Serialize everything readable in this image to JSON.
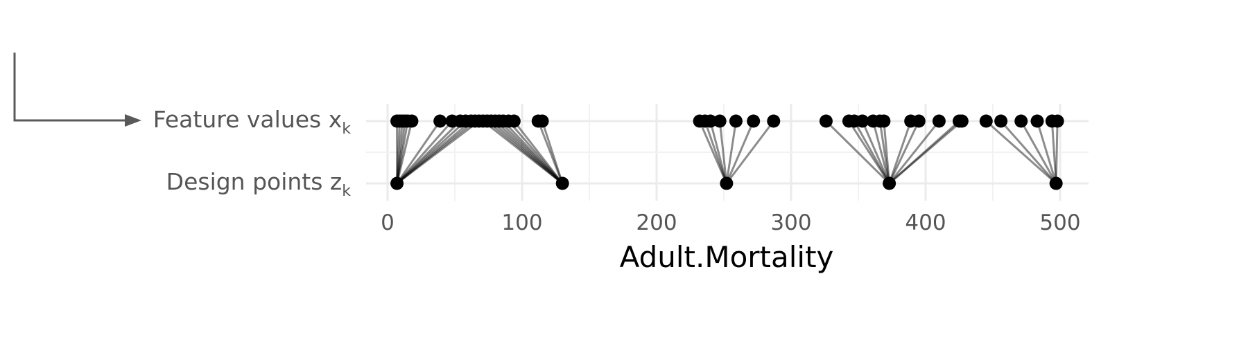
{
  "chart_data": {
    "type": "scatter",
    "xlabel": "Adult.Mortality",
    "xlim": [
      0,
      520
    ],
    "xticks": [
      0,
      100,
      200,
      300,
      400,
      500
    ],
    "rows": [
      {
        "label_main": "Feature values x",
        "label_sub": "k"
      },
      {
        "label_main": "Design points z",
        "label_sub": "k"
      }
    ],
    "design_points": [
      7,
      130,
      252,
      373,
      497
    ],
    "feature_values": [
      {
        "x": 7,
        "z": 7
      },
      {
        "x": 9,
        "z": 7
      },
      {
        "x": 11,
        "z": 7
      },
      {
        "x": 13,
        "z": 7
      },
      {
        "x": 15,
        "z": 7
      },
      {
        "x": 18,
        "z": 7
      },
      {
        "x": 39,
        "z": 7
      },
      {
        "x": 48,
        "z": 7
      },
      {
        "x": 54,
        "z": 7
      },
      {
        "x": 58,
        "z": 7
      },
      {
        "x": 62,
        "z": 7
      },
      {
        "x": 65,
        "z": 7
      },
      {
        "x": 68,
        "z": 7
      },
      {
        "x": 71,
        "z": 130
      },
      {
        "x": 74,
        "z": 130
      },
      {
        "x": 77,
        "z": 130
      },
      {
        "x": 80,
        "z": 130
      },
      {
        "x": 83,
        "z": 130
      },
      {
        "x": 86,
        "z": 130
      },
      {
        "x": 90,
        "z": 130
      },
      {
        "x": 94,
        "z": 130
      },
      {
        "x": 112,
        "z": 130
      },
      {
        "x": 115,
        "z": 130
      },
      {
        "x": 232,
        "z": 252
      },
      {
        "x": 236,
        "z": 252
      },
      {
        "x": 240,
        "z": 252
      },
      {
        "x": 247,
        "z": 252
      },
      {
        "x": 259,
        "z": 252
      },
      {
        "x": 272,
        "z": 252
      },
      {
        "x": 287,
        "z": 252
      },
      {
        "x": 326,
        "z": 373
      },
      {
        "x": 343,
        "z": 373
      },
      {
        "x": 347,
        "z": 373
      },
      {
        "x": 353,
        "z": 373
      },
      {
        "x": 361,
        "z": 373
      },
      {
        "x": 366,
        "z": 373
      },
      {
        "x": 369,
        "z": 373
      },
      {
        "x": 389,
        "z": 373
      },
      {
        "x": 395,
        "z": 373
      },
      {
        "x": 410,
        "z": 373
      },
      {
        "x": 425,
        "z": 373
      },
      {
        "x": 427,
        "z": 373
      },
      {
        "x": 445,
        "z": 497
      },
      {
        "x": 456,
        "z": 497
      },
      {
        "x": 471,
        "z": 497
      },
      {
        "x": 483,
        "z": 497
      },
      {
        "x": 494,
        "z": 497
      },
      {
        "x": 498,
        "z": 497
      }
    ]
  }
}
